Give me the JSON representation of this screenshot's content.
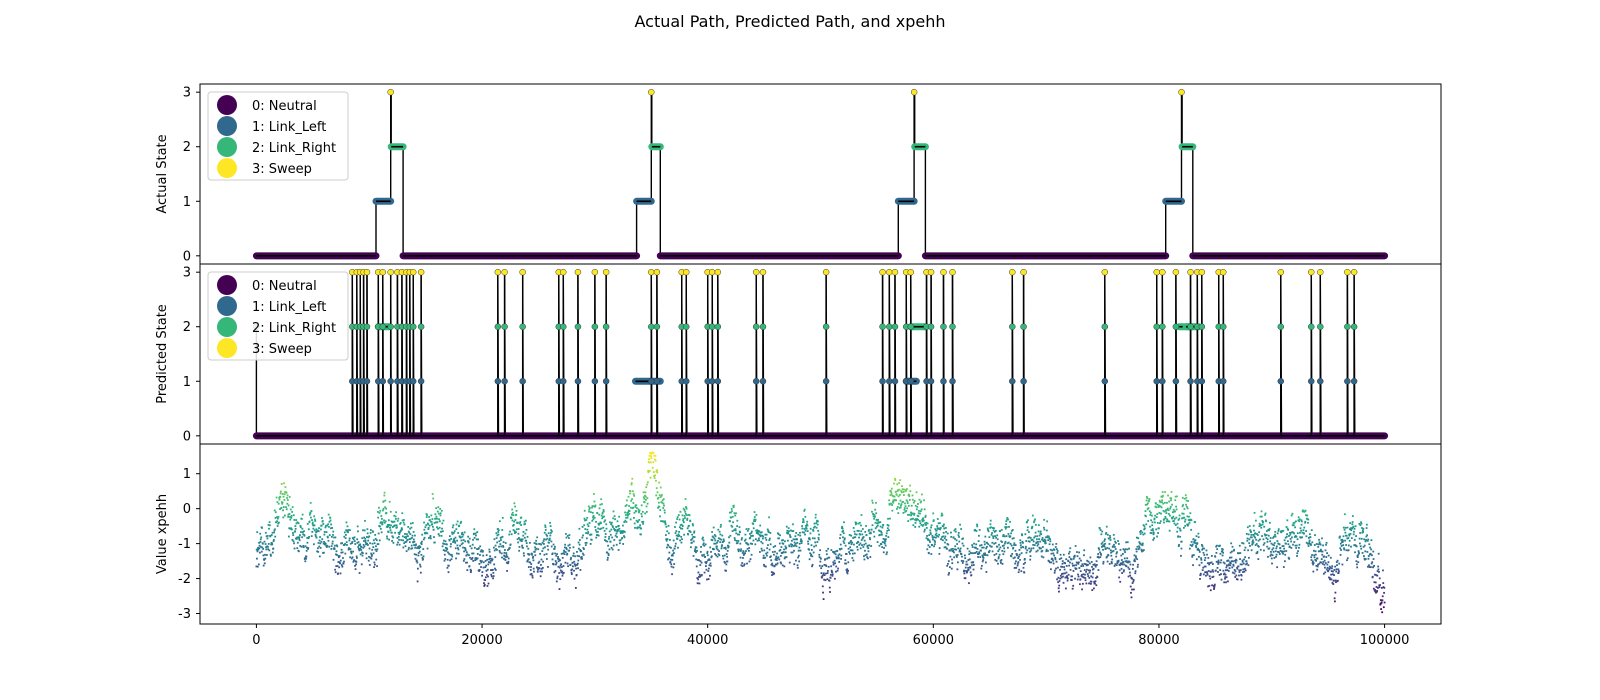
{
  "title": "Actual Path, Predicted Path, and xpehh",
  "state_colors": [
    "#440154",
    "#31688e",
    "#35b779",
    "#fde725"
  ],
  "legend": [
    "0: Neutral",
    "1: Link_Left",
    "2: Link_Right",
    "3: Sweep"
  ],
  "chart_data": [
    {
      "type": "line",
      "panel": "actual",
      "ylabel": "Actual State",
      "xlim": [
        -5000,
        105000
      ],
      "ylim": [
        -0.15,
        3.15
      ],
      "yticks": [
        0,
        1,
        2,
        3
      ],
      "legend_placement": "upper-left",
      "segments": [
        {
          "x": [
            0,
            10600
          ],
          "y": 0
        },
        {
          "x": [
            10600,
            11900
          ],
          "y": 1
        },
        {
          "x": [
            11900,
            11950
          ],
          "y": 3
        },
        {
          "x": [
            11950,
            13000
          ],
          "y": 2
        },
        {
          "x": [
            13000,
            33700
          ],
          "y": 0
        },
        {
          "x": [
            33700,
            35000
          ],
          "y": 1
        },
        {
          "x": [
            35000,
            35050
          ],
          "y": 3
        },
        {
          "x": [
            35050,
            35800
          ],
          "y": 2
        },
        {
          "x": [
            35800,
            56900
          ],
          "y": 0
        },
        {
          "x": [
            56900,
            58300
          ],
          "y": 1
        },
        {
          "x": [
            58300,
            58350
          ],
          "y": 3
        },
        {
          "x": [
            58350,
            59300
          ],
          "y": 2
        },
        {
          "x": [
            59300,
            80600
          ],
          "y": 0
        },
        {
          "x": [
            80600,
            82000
          ],
          "y": 1
        },
        {
          "x": [
            82000,
            82050
          ],
          "y": 3
        },
        {
          "x": [
            82050,
            83000
          ],
          "y": 2
        },
        {
          "x": [
            83000,
            100000
          ],
          "y": 0
        }
      ]
    },
    {
      "type": "line",
      "panel": "predicted",
      "ylabel": "Predicted State",
      "xlim": [
        -5000,
        105000
      ],
      "ylim": [
        -0.15,
        3.15
      ],
      "yticks": [
        0,
        1,
        2,
        3
      ],
      "legend_placement": "upper-left",
      "baseline_state": 0,
      "start_spike": {
        "x": 0,
        "y": 2
      },
      "sweep_positions": [
        8500,
        8900,
        9200,
        9500,
        9800,
        10800,
        11200,
        11900,
        12500,
        12900,
        13300,
        13600,
        13900,
        14600,
        21400,
        22000,
        23600,
        26800,
        27200,
        28500,
        30000,
        31000,
        35000,
        35500,
        37700,
        38100,
        40000,
        40400,
        40900,
        44300,
        44900,
        50500,
        55500,
        56100,
        56600,
        57600,
        58000,
        59400,
        59800,
        60900,
        61700,
        67000,
        68000,
        75200,
        79800,
        80300,
        81500,
        82800,
        83400,
        83800,
        85300,
        85700,
        90800,
        93500,
        94300,
        96700,
        97300
      ],
      "link_left_runs": [
        [
          33600,
          35800
        ],
        [
          57600,
          58500
        ]
      ],
      "link_right_runs": [
        [
          10800,
          11700
        ],
        [
          58000,
          59300
        ],
        [
          81800,
          83000
        ],
        [
          82400,
          83500
        ]
      ],
      "x_ticks": [
        0,
        20000,
        40000,
        60000,
        80000,
        100000
      ]
    },
    {
      "type": "scatter",
      "panel": "xpehh",
      "ylabel": "Value xpehh",
      "xlim": [
        -5000,
        105000
      ],
      "ylim": [
        -3.3,
        1.85
      ],
      "yticks": [
        -3,
        -2,
        -1,
        0,
        1
      ],
      "xticks": [
        0,
        20000,
        40000,
        60000,
        80000,
        100000
      ],
      "xticklabels": [
        "0",
        "20000",
        "40000",
        "60000",
        "80000",
        "100000"
      ],
      "colormap": "viridis",
      "x_range": [
        0,
        100000
      ],
      "baseline_mean": -1.05,
      "peaks": [
        {
          "x": 11500,
          "y": 0.6
        },
        {
          "x": 35000,
          "y": 1.6
        },
        {
          "x": 57800,
          "y": 0.6
        },
        {
          "x": 82000,
          "y": 0.2
        }
      ],
      "end_min": {
        "x": 99900,
        "y": -3.0
      }
    }
  ]
}
